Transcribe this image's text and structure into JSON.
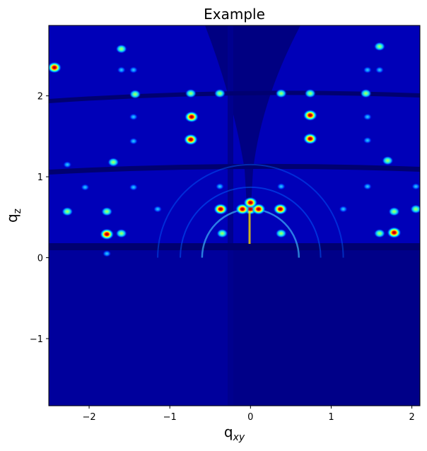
{
  "chart_data": {
    "type": "heatmap",
    "title": "Example",
    "xlabel": "q",
    "xlabel_sub": "xy",
    "ylabel": "q",
    "ylabel_sub": "z",
    "xlim": [
      -2.5,
      2.1
    ],
    "ylim": [
      -1.83,
      2.87
    ],
    "xticks": [
      -2,
      -1,
      0,
      1,
      2
    ],
    "xtick_labels": [
      "−2",
      "−1",
      "0",
      "1",
      "2"
    ],
    "yticks": [
      -1,
      0,
      1,
      2
    ],
    "ytick_labels": [
      "−1",
      "0",
      "1",
      "2"
    ],
    "colormap": "jet",
    "grid": false,
    "colors": {
      "background": "#00007f",
      "low": "#00009a",
      "mid": "#00a0ff",
      "high": "#7fff7f",
      "peak": "#ff0000"
    },
    "reflections": [
      {
        "x": 0.0,
        "y": 0.6,
        "i": 1.0
      },
      {
        "x": -0.1,
        "y": 0.6,
        "i": 1.0
      },
      {
        "x": 0.1,
        "y": 0.6,
        "i": 1.0
      },
      {
        "x": -0.37,
        "y": 0.6,
        "i": 1.0
      },
      {
        "x": 0.37,
        "y": 0.6,
        "i": 1.0
      },
      {
        "x": 0.0,
        "y": 0.68,
        "i": 0.95
      },
      {
        "x": -0.35,
        "y": 0.3,
        "i": 0.8
      },
      {
        "x": 0.38,
        "y": 0.3,
        "i": 0.8
      },
      {
        "x": -1.78,
        "y": 0.29,
        "i": 1.0
      },
      {
        "x": 1.78,
        "y": 0.31,
        "i": 1.0
      },
      {
        "x": -1.6,
        "y": 0.3,
        "i": 0.6
      },
      {
        "x": 1.6,
        "y": 0.3,
        "i": 0.6
      },
      {
        "x": -2.27,
        "y": 0.57,
        "i": 0.8
      },
      {
        "x": -1.78,
        "y": 0.57,
        "i": 0.8
      },
      {
        "x": 1.78,
        "y": 0.57,
        "i": 0.8
      },
      {
        "x": 2.05,
        "y": 0.6,
        "i": 0.8
      },
      {
        "x": -0.73,
        "y": 1.74,
        "i": 1.0
      },
      {
        "x": 0.74,
        "y": 1.76,
        "i": 1.0
      },
      {
        "x": -0.74,
        "y": 1.46,
        "i": 0.95
      },
      {
        "x": 0.74,
        "y": 1.47,
        "i": 0.95
      },
      {
        "x": -0.74,
        "y": 2.03,
        "i": 0.6
      },
      {
        "x": 0.74,
        "y": 2.03,
        "i": 0.6
      },
      {
        "x": -0.38,
        "y": 2.03,
        "i": 0.75
      },
      {
        "x": 0.38,
        "y": 2.03,
        "i": 0.75
      },
      {
        "x": -1.43,
        "y": 2.02,
        "i": 0.8
      },
      {
        "x": 1.43,
        "y": 2.03,
        "i": 0.6
      },
      {
        "x": -1.6,
        "y": 2.58,
        "i": 0.6
      },
      {
        "x": 1.6,
        "y": 2.61,
        "i": 0.6
      },
      {
        "x": -1.6,
        "y": 2.32,
        "i": 0.5
      },
      {
        "x": -1.45,
        "y": 2.32,
        "i": 0.5
      },
      {
        "x": 1.45,
        "y": 2.32,
        "i": 0.5
      },
      {
        "x": 1.6,
        "y": 2.32,
        "i": 0.5
      },
      {
        "x": -2.43,
        "y": 2.35,
        "i": 0.9
      },
      {
        "x": -1.7,
        "y": 1.18,
        "i": 0.8
      },
      {
        "x": 1.7,
        "y": 1.2,
        "i": 0.8
      },
      {
        "x": -2.27,
        "y": 1.15,
        "i": 0.5
      },
      {
        "x": -1.45,
        "y": 0.87,
        "i": 0.5
      },
      {
        "x": 1.45,
        "y": 0.88,
        "i": 0.5
      },
      {
        "x": -2.05,
        "y": 0.87,
        "i": 0.45
      },
      {
        "x": 2.05,
        "y": 0.88,
        "i": 0.45
      },
      {
        "x": -1.78,
        "y": 0.05,
        "i": 0.45
      },
      {
        "x": -1.45,
        "y": 1.44,
        "i": 0.45
      },
      {
        "x": 1.45,
        "y": 1.45,
        "i": 0.45
      },
      {
        "x": -1.45,
        "y": 1.74,
        "i": 0.45
      },
      {
        "x": 1.45,
        "y": 1.74,
        "i": 0.45
      },
      {
        "x": -0.38,
        "y": 0.88,
        "i": 0.4
      },
      {
        "x": 0.38,
        "y": 0.88,
        "i": 0.4
      },
      {
        "x": -1.15,
        "y": 0.6,
        "i": 0.4
      },
      {
        "x": 1.15,
        "y": 0.6,
        "i": 0.4
      }
    ],
    "rings": [
      {
        "r": 0.6,
        "i": 0.6
      },
      {
        "r": 0.87,
        "i": 0.3
      },
      {
        "r": 1.15,
        "i": 0.2
      }
    ]
  }
}
